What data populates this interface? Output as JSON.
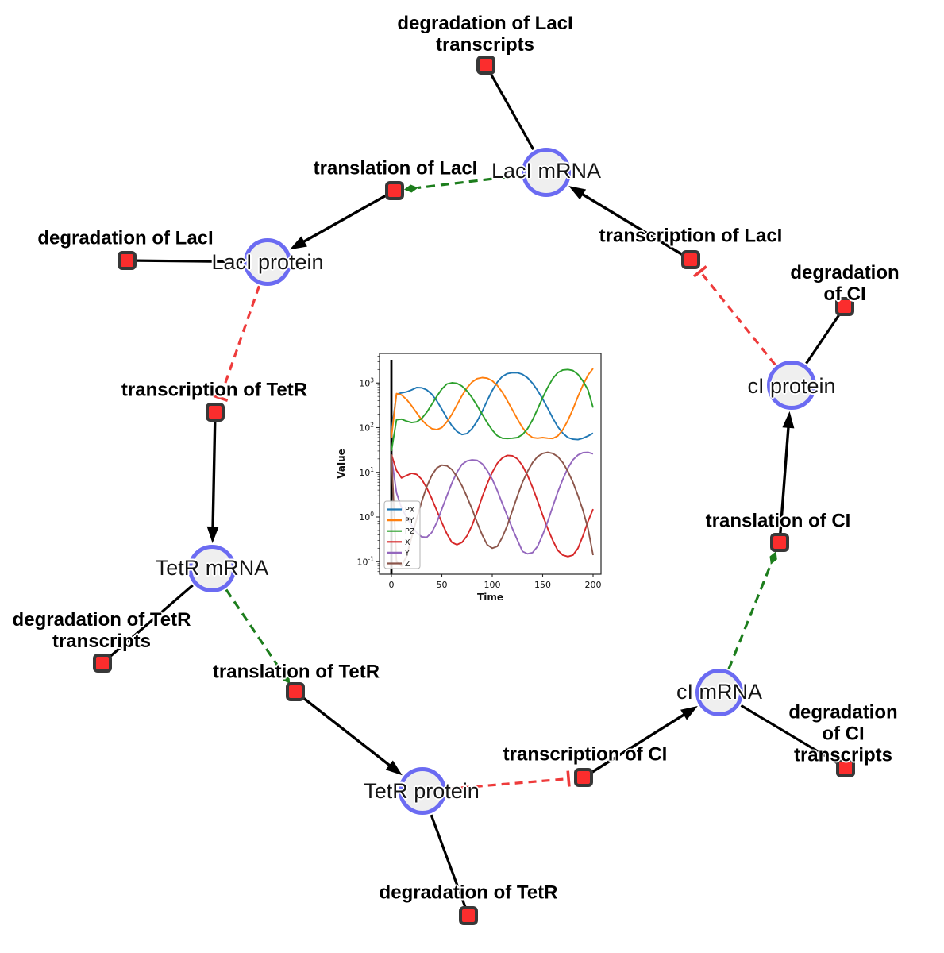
{
  "diagram": {
    "species": [
      {
        "id": "laci-mrna",
        "label": "LacI mRNA"
      },
      {
        "id": "laci-protein",
        "label": "LacI protein"
      },
      {
        "id": "tetr-mrna",
        "label": "TetR mRNA"
      },
      {
        "id": "tetr-protein",
        "label": "TetR protein"
      },
      {
        "id": "ci-mrna",
        "label": "cI mRNA"
      },
      {
        "id": "ci-protein",
        "label": "cI protein"
      }
    ],
    "reactions": [
      {
        "id": "deg-laci-transcripts",
        "label": "degradation of LacI\ntranscripts"
      },
      {
        "id": "translation-laci",
        "label": "translation of LacI"
      },
      {
        "id": "deg-laci",
        "label": "degradation of LacI"
      },
      {
        "id": "transcription-laci",
        "label": "transcription of LacI"
      },
      {
        "id": "deg-ci",
        "label": "degradation of CI"
      },
      {
        "id": "transcription-tetr",
        "label": "transcription of TetR"
      },
      {
        "id": "deg-tetr-transcripts",
        "label": "degradation of TetR\ntranscripts"
      },
      {
        "id": "translation-tetr",
        "label": "translation of TetR"
      },
      {
        "id": "translation-ci",
        "label": "translation of CI"
      },
      {
        "id": "transcription-ci",
        "label": "transcription of CI"
      },
      {
        "id": "deg-ci-transcripts",
        "label": "degradation of CI\ntranscripts"
      },
      {
        "id": "deg-tetr",
        "label": "degradation of TetR"
      }
    ],
    "edges": [
      {
        "from": "laci-mrna",
        "to": "deg-laci-transcripts",
        "type": "consumption"
      },
      {
        "from": "transcription-laci",
        "to": "laci-mrna",
        "type": "production"
      },
      {
        "from": "laci-mrna",
        "to": "translation-laci",
        "type": "modifier"
      },
      {
        "from": "translation-laci",
        "to": "laci-protein",
        "type": "production"
      },
      {
        "from": "laci-protein",
        "to": "deg-laci",
        "type": "consumption"
      },
      {
        "from": "laci-protein",
        "to": "transcription-tetr",
        "type": "inhibition"
      },
      {
        "from": "transcription-tetr",
        "to": "tetr-mrna",
        "type": "production"
      },
      {
        "from": "tetr-mrna",
        "to": "deg-tetr-transcripts",
        "type": "consumption"
      },
      {
        "from": "tetr-mrna",
        "to": "translation-tetr",
        "type": "modifier"
      },
      {
        "from": "translation-tetr",
        "to": "tetr-protein",
        "type": "production"
      },
      {
        "from": "tetr-protein",
        "to": "deg-tetr",
        "type": "consumption"
      },
      {
        "from": "tetr-protein",
        "to": "transcription-ci",
        "type": "inhibition"
      },
      {
        "from": "transcription-ci",
        "to": "ci-mrna",
        "type": "production"
      },
      {
        "from": "ci-mrna",
        "to": "deg-ci-transcripts",
        "type": "consumption"
      },
      {
        "from": "ci-mrna",
        "to": "translation-ci",
        "type": "modifier"
      },
      {
        "from": "translation-ci",
        "to": "ci-protein",
        "type": "production"
      },
      {
        "from": "ci-protein",
        "to": "deg-ci",
        "type": "consumption"
      },
      {
        "from": "ci-protein",
        "to": "transcription-laci",
        "type": "inhibition"
      }
    ],
    "colors": {
      "species_fill": "#efefef",
      "species_border": "#6b6bf2",
      "reaction_fill": "#fb2d2d",
      "reaction_border": "#383838",
      "edge_black": "#000000",
      "inhibition_red": "#ee3b3b",
      "modifier_green": "#1c7d1c",
      "label_color": "#141414"
    }
  },
  "chart_data": {
    "type": "line",
    "title": "",
    "xlabel": "Time",
    "ylabel": "Value",
    "x_ticks": [
      0,
      50,
      100,
      150,
      200
    ],
    "y_scale": "log",
    "y_tick_exponents": [
      3,
      2,
      1,
      0,
      -1
    ],
    "xlim": [
      -12,
      208
    ],
    "ylim_log10": [
      -1.28,
      3.66
    ],
    "legend_position": "lower left",
    "marker_line_x": 0,
    "x": [
      0,
      5,
      10,
      15,
      20,
      25,
      30,
      35,
      40,
      45,
      50,
      55,
      60,
      65,
      70,
      75,
      80,
      85,
      90,
      95,
      100,
      105,
      110,
      115,
      120,
      125,
      130,
      135,
      140,
      145,
      150,
      155,
      160,
      165,
      170,
      175,
      180,
      185,
      190,
      195,
      200
    ],
    "series": [
      {
        "name": "PX",
        "color": "#1f77b4",
        "values": [
          80,
          560,
          600,
          630,
          700,
          790,
          780,
          700,
          560,
          400,
          260,
          165,
          110,
          82,
          70,
          74,
          95,
          140,
          230,
          400,
          680,
          1050,
          1400,
          1620,
          1700,
          1690,
          1560,
          1300,
          980,
          680,
          440,
          270,
          165,
          105,
          75,
          60,
          55,
          54,
          58,
          65,
          75
        ]
      },
      {
        "name": "PY",
        "color": "#ff7f0e",
        "values": [
          60,
          580,
          540,
          430,
          310,
          215,
          150,
          115,
          95,
          90,
          100,
          135,
          200,
          320,
          520,
          780,
          1050,
          1250,
          1320,
          1280,
          1120,
          880,
          620,
          400,
          250,
          155,
          100,
          72,
          60,
          58,
          60,
          58,
          57,
          65,
          90,
          145,
          260,
          500,
          900,
          1500,
          2100
        ]
      },
      {
        "name": "PZ",
        "color": "#2ca02c",
        "values": [
          30,
          150,
          155,
          140,
          130,
          135,
          160,
          220,
          330,
          500,
          730,
          950,
          1010,
          980,
          850,
          660,
          470,
          310,
          200,
          130,
          88,
          66,
          58,
          57,
          58,
          60,
          70,
          95,
          150,
          260,
          470,
          800,
          1250,
          1700,
          1950,
          2000,
          1900,
          1550,
          1100,
          700,
          280
        ]
      },
      {
        "name": "X",
        "color": "#d62728",
        "values": [
          25,
          11,
          7.5,
          8.5,
          9.5,
          9,
          7,
          4.5,
          2.6,
          1.4,
          0.75,
          0.42,
          0.27,
          0.24,
          0.27,
          0.38,
          0.65,
          1.3,
          2.8,
          5.5,
          10,
          16,
          21,
          24,
          23.5,
          20,
          14,
          8.5,
          4.6,
          2.3,
          1.1,
          0.55,
          0.3,
          0.18,
          0.14,
          0.13,
          0.14,
          0.2,
          0.38,
          0.8,
          1.5
        ]
      },
      {
        "name": "Y",
        "color": "#9467bd",
        "values": [
          22,
          3.5,
          1.6,
          1.0,
          0.65,
          0.45,
          0.36,
          0.35,
          0.45,
          0.75,
          1.5,
          3.0,
          5.8,
          10,
          15,
          18,
          19,
          18.5,
          15.5,
          11,
          7,
          3.9,
          2.0,
          1.05,
          0.55,
          0.3,
          0.17,
          0.15,
          0.16,
          0.22,
          0.4,
          0.8,
          1.7,
          3.6,
          7,
          12.5,
          19,
          24.5,
          27.5,
          28,
          26
        ]
      },
      {
        "name": "Z",
        "color": "#8c564b",
        "values": [
          25,
          0.1,
          0.08,
          0.13,
          0.35,
          0.9,
          2.2,
          4.8,
          8.5,
          12.5,
          14.5,
          14,
          11.5,
          8,
          5,
          2.8,
          1.5,
          0.75,
          0.4,
          0.24,
          0.2,
          0.22,
          0.35,
          0.65,
          1.4,
          3,
          6,
          10.5,
          16.5,
          22.5,
          26.5,
          28,
          26.5,
          22.5,
          16.5,
          10.5,
          6,
          3,
          1.4,
          0.55,
          0.14
        ]
      }
    ]
  }
}
